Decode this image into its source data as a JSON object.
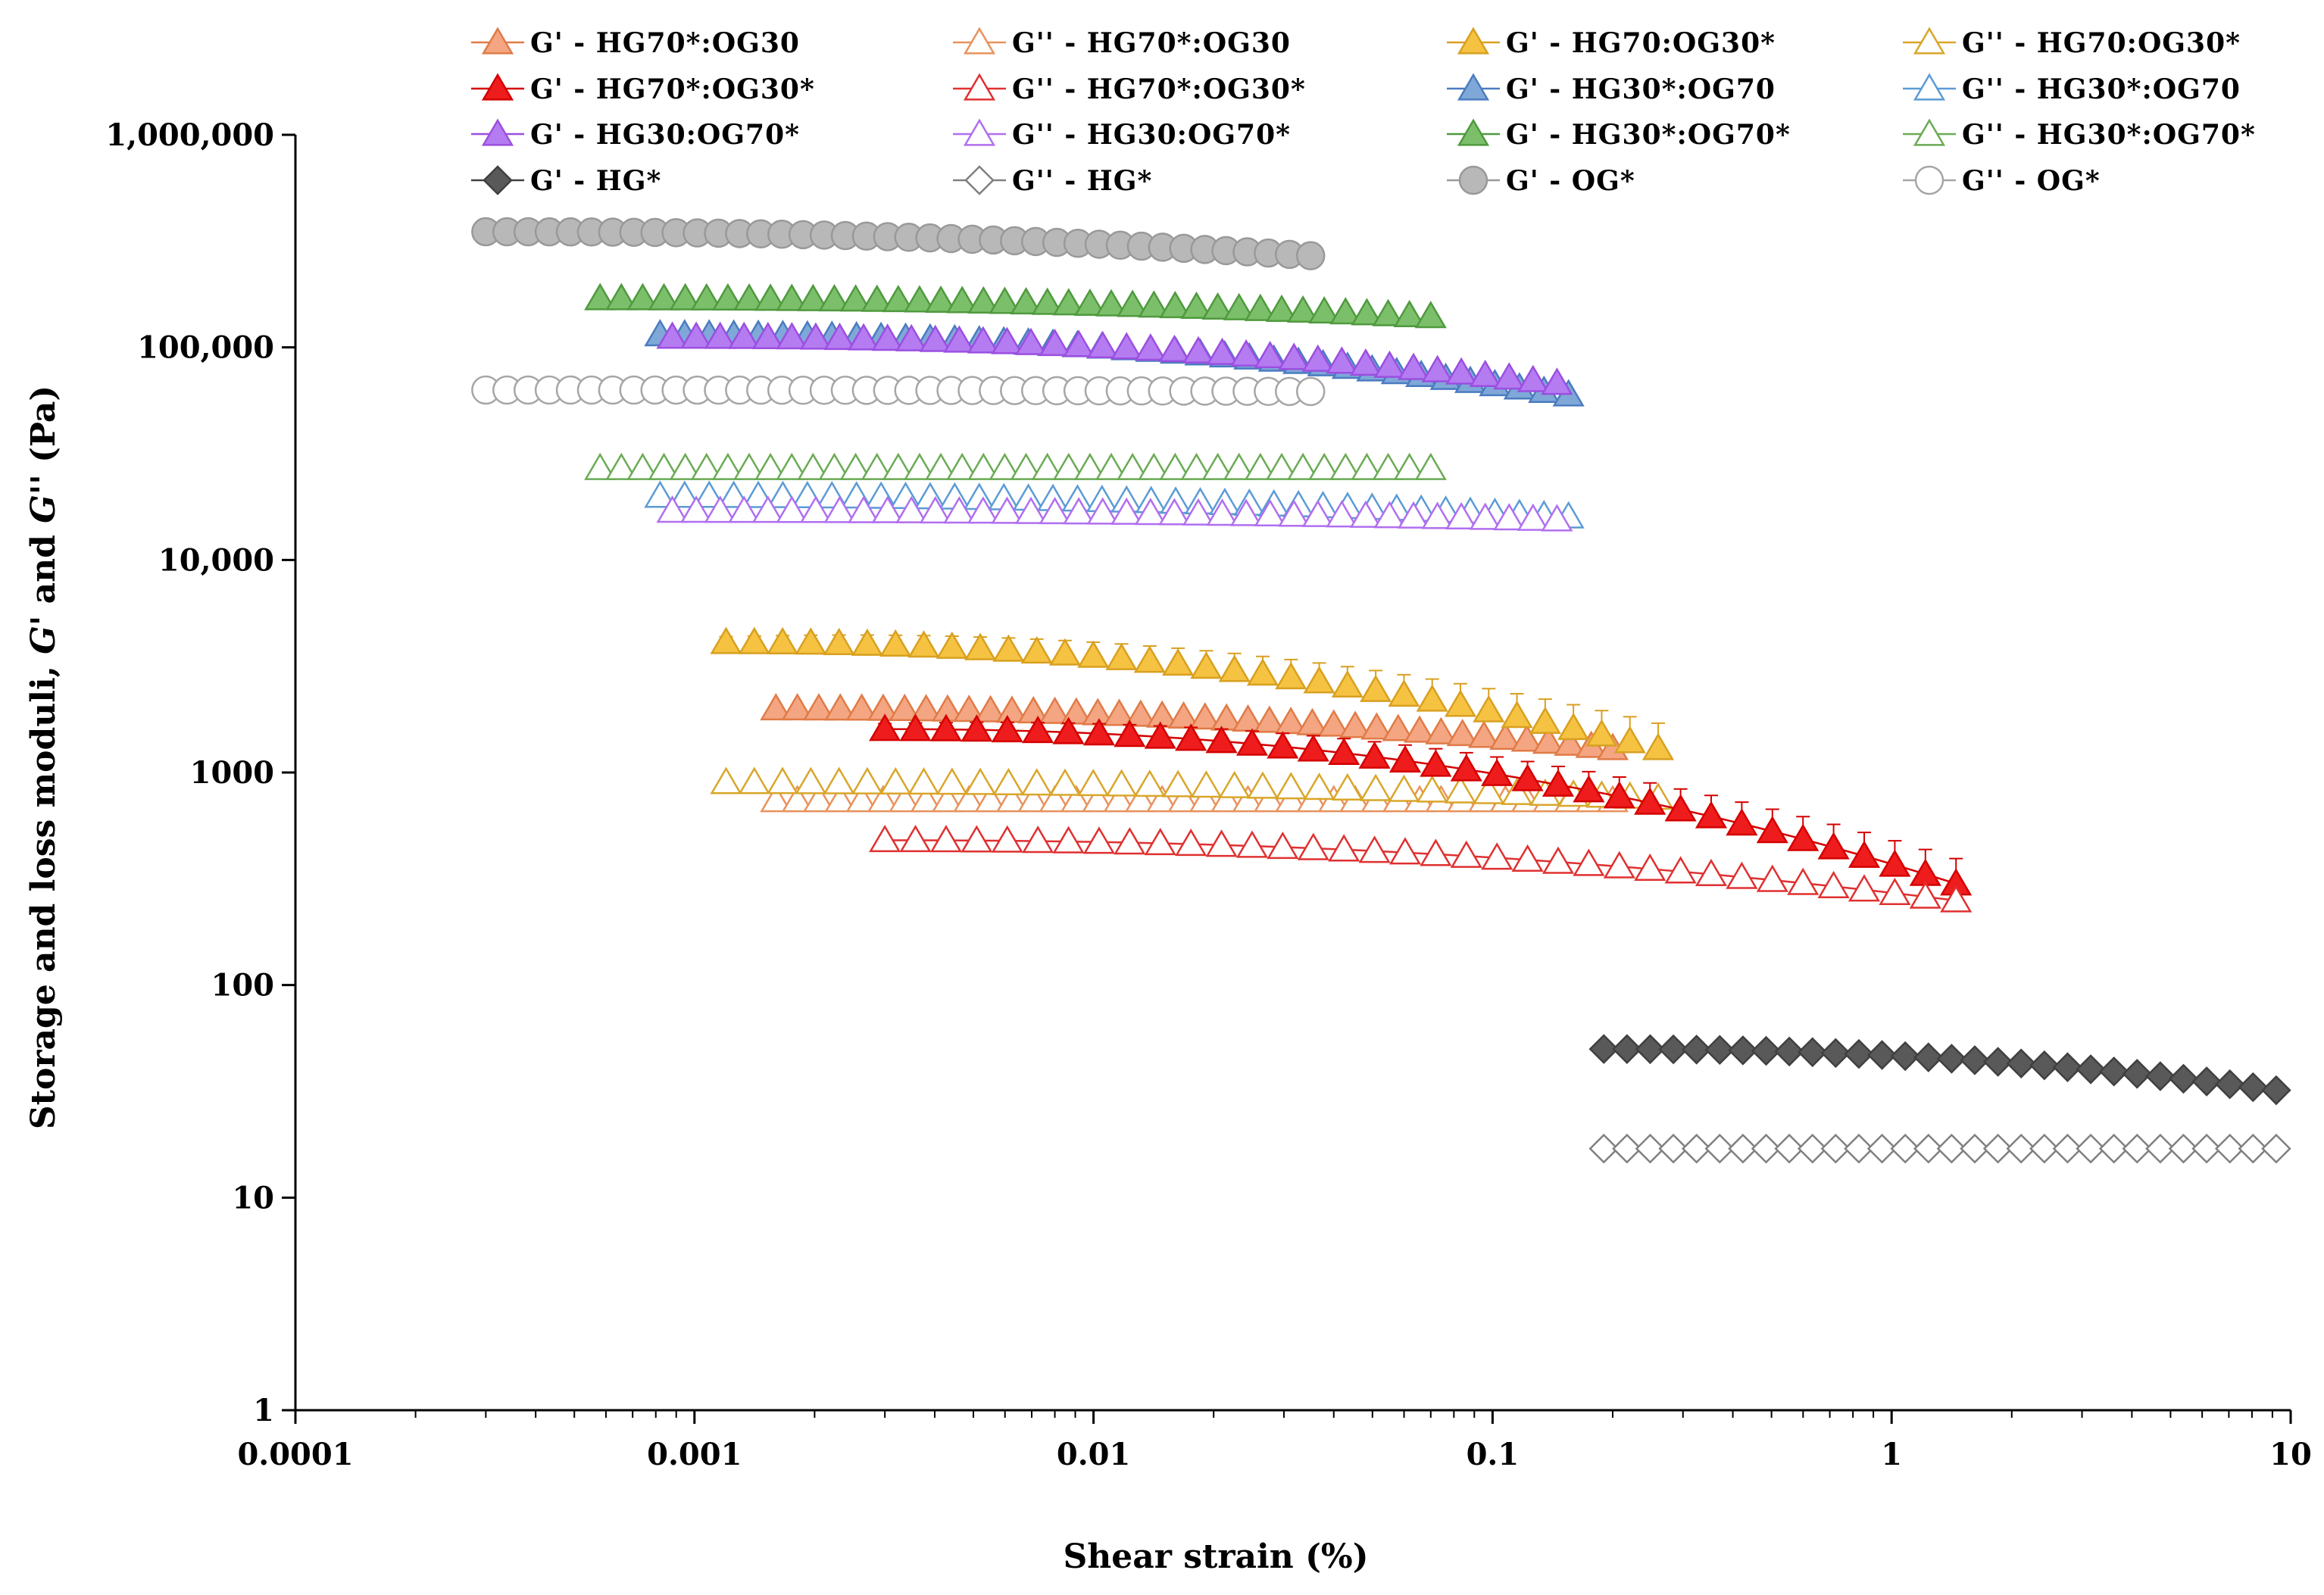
{
  "chart_data": {
    "type": "scatter",
    "title": "",
    "xlabel": "Shear strain (%)",
    "ylabel_parts": [
      "Storage and loss moduli, ",
      "G'",
      " and ",
      "G''",
      " (Pa)"
    ],
    "xscale": "log",
    "yscale": "log",
    "xlim": [
      0.0001,
      10
    ],
    "ylim": [
      1,
      1000000
    ],
    "x_ticks": [
      {
        "value": 0.0001,
        "label": "0.0001"
      },
      {
        "value": 0.001,
        "label": "0.001"
      },
      {
        "value": 0.01,
        "label": "0.01"
      },
      {
        "value": 0.1,
        "label": "0.1"
      },
      {
        "value": 1,
        "label": "1"
      },
      {
        "value": 10,
        "label": "10"
      }
    ],
    "y_ticks": [
      {
        "value": 1,
        "label": "1"
      },
      {
        "value": 10,
        "label": "10"
      },
      {
        "value": 100,
        "label": "100"
      },
      {
        "value": 1000,
        "label": "1000"
      },
      {
        "value": 10000,
        "label": "10,000"
      },
      {
        "value": 100000,
        "label": "100,000"
      },
      {
        "value": 1000000,
        "label": "1,000,000"
      }
    ],
    "grid": false,
    "legend_position": "top",
    "series": [
      {
        "name": "G' - HG70*:OG30",
        "marker": "triangle",
        "filled": true,
        "color": "#f4a582",
        "stroke": "#e07b47",
        "x_range": [
          0.0016,
          0.2
        ],
        "y_start": 2000,
        "y_end": 1300,
        "n": 40,
        "line": false
      },
      {
        "name": "G'' - HG70*:OG30",
        "marker": "triangle",
        "filled": false,
        "color": "#e8925c",
        "stroke": "#e8925c",
        "x_range": [
          0.0016,
          0.2
        ],
        "y_start": 740,
        "y_end": 740,
        "n": 40,
        "line": false
      },
      {
        "name": "G' - HG70:OG30*",
        "marker": "triangle",
        "filled": true,
        "color": "#f5c242",
        "stroke": "#d8a020",
        "x_range": [
          0.0012,
          0.26
        ],
        "y_start": 4100,
        "y_end": 1300,
        "n": 34,
        "line": false,
        "error": 0.25
      },
      {
        "name": "G'' - HG70:OG30*",
        "marker": "triangle",
        "filled": false,
        "color": "#d9a62a",
        "stroke": "#d9a62a",
        "x_range": [
          0.0012,
          0.26
        ],
        "y_start": 900,
        "y_end": 760,
        "n": 34,
        "line": false
      },
      {
        "name": "G' - HG70*:OG30*",
        "marker": "triangle",
        "filled": true,
        "color": "#ee1c1c",
        "stroke": "#d40000",
        "x_range": [
          0.003,
          1.45
        ],
        "y_start": 1600,
        "y_end": 300,
        "n": 36,
        "line": true,
        "error": 0.25
      },
      {
        "name": "G'' - HG70*:OG30*",
        "marker": "triangle",
        "filled": false,
        "color": "#e03030",
        "stroke": "#e03030",
        "x_range": [
          0.003,
          1.45
        ],
        "y_start": 480,
        "y_end": 250,
        "n": 36,
        "line": true
      },
      {
        "name": "G' - HG30*:OG70",
        "marker": "triangle",
        "filled": true,
        "color": "#7fa8d8",
        "stroke": "#4a7cc0",
        "x_range": [
          0.00082,
          0.155
        ],
        "y_start": 115000,
        "y_end": 60000,
        "n": 38,
        "line": false
      },
      {
        "name": "G'' - HG30*:OG70",
        "marker": "triangle",
        "filled": false,
        "color": "#5b9bd5",
        "stroke": "#5b9bd5",
        "x_range": [
          0.00082,
          0.155
        ],
        "y_start": 20000,
        "y_end": 16000,
        "n": 38,
        "line": false
      },
      {
        "name": "G' - HG30:OG70*",
        "marker": "triangle",
        "filled": true,
        "color": "#b57cf2",
        "stroke": "#9b4fe0",
        "x_range": [
          0.00088,
          0.145
        ],
        "y_start": 112000,
        "y_end": 68000,
        "n": 38,
        "line": false
      },
      {
        "name": "G'' - HG30:OG70*",
        "marker": "triangle",
        "filled": false,
        "color": "#b06ff0",
        "stroke": "#b06ff0",
        "x_range": [
          0.00088,
          0.145
        ],
        "y_start": 17000,
        "y_end": 15500,
        "n": 38,
        "line": false
      },
      {
        "name": "G' - HG30*:OG70*",
        "marker": "triangle",
        "filled": true,
        "color": "#7cbf6a",
        "stroke": "#4f9a3e",
        "x_range": [
          0.00058,
          0.07
        ],
        "y_start": 170000,
        "y_end": 140000,
        "n": 40,
        "line": false
      },
      {
        "name": "G'' - HG30*:OG70*",
        "marker": "triangle",
        "filled": false,
        "color": "#6aab55",
        "stroke": "#6aab55",
        "x_range": [
          0.00058,
          0.07
        ],
        "y_start": 27000,
        "y_end": 27000,
        "n": 40,
        "line": false
      },
      {
        "name": "G' - HG*",
        "marker": "diamond",
        "filled": true,
        "color": "#595959",
        "stroke": "#404040",
        "x_range": [
          0.19,
          9.2
        ],
        "y_start": 50,
        "y_end": 32,
        "n": 30,
        "line": true
      },
      {
        "name": "G'' - HG*",
        "marker": "diamond",
        "filled": false,
        "color": "#808080",
        "stroke": "#808080",
        "x_range": [
          0.19,
          9.2
        ],
        "y_start": 17,
        "y_end": 17,
        "n": 30,
        "line": true
      },
      {
        "name": "G' - OG*",
        "marker": "circle",
        "filled": true,
        "color": "#b8b8b8",
        "stroke": "#999999",
        "x_range": [
          0.0003,
          0.035
        ],
        "y_start": 350000,
        "y_end": 270000,
        "n": 40,
        "line": false
      },
      {
        "name": "G'' - OG*",
        "marker": "circle",
        "filled": false,
        "color": "#a6a6a6",
        "stroke": "#a6a6a6",
        "x_range": [
          0.0003,
          0.035
        ],
        "y_start": 63000,
        "y_end": 62000,
        "n": 40,
        "line": false
      }
    ]
  }
}
